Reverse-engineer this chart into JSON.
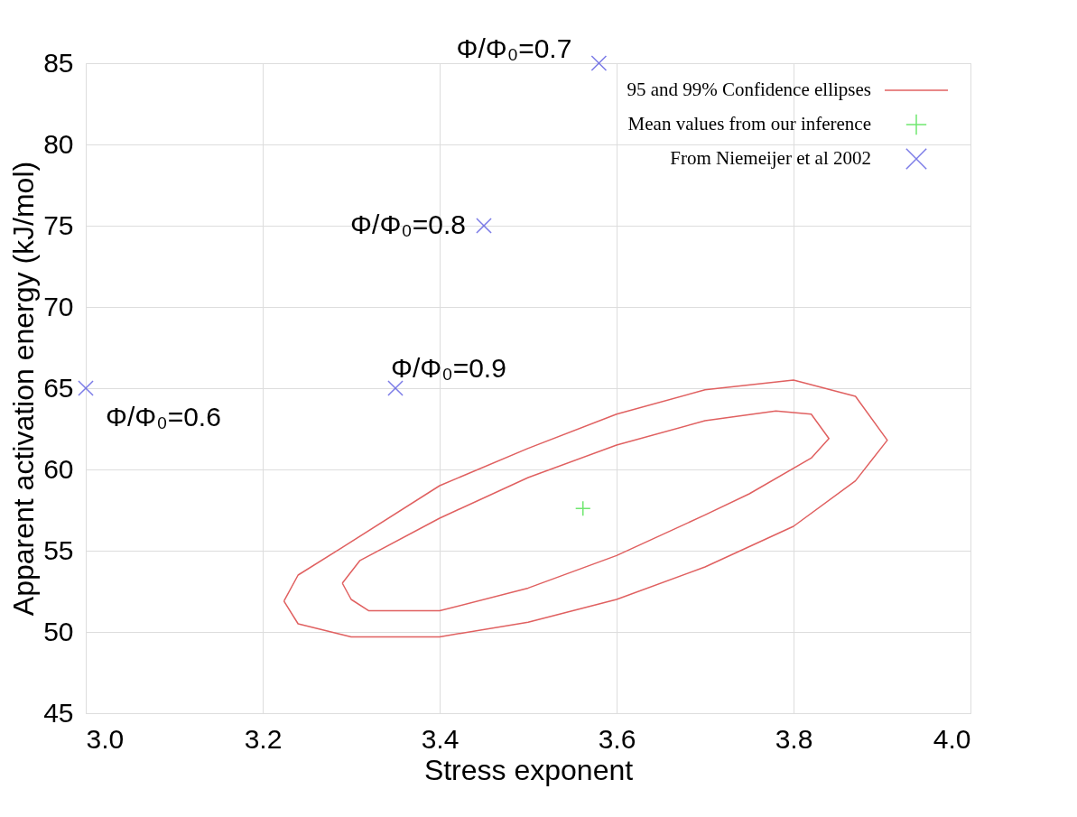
{
  "chart_data": {
    "type": "scatter",
    "xlabel": "Stress exponent",
    "ylabel": "Apparent activation energy (kJ/mol)",
    "xlim": [
      3.0,
      4.0
    ],
    "ylim": [
      45,
      85
    ],
    "xticks": [
      {
        "value": 3.0,
        "label": "3.0"
      },
      {
        "value": 3.2,
        "label": "3.2"
      },
      {
        "value": 3.4,
        "label": "3.4"
      },
      {
        "value": 3.6,
        "label": "3.6"
      },
      {
        "value": 3.8,
        "label": "3.8"
      },
      {
        "value": 4.0,
        "label": "4.0"
      }
    ],
    "yticks": [
      45,
      50,
      55,
      60,
      65,
      70,
      75,
      80,
      85
    ],
    "grid": true,
    "legend": "top right",
    "series": [
      {
        "name": "95 and 99% Confidence ellipses",
        "type": "line",
        "color": "#e06060"
      },
      {
        "name": "Mean values from our inference",
        "color": "#33dd33",
        "marker": "cross",
        "x": [
          3.562
        ],
        "values": [
          57.6
        ]
      },
      {
        "name": "From Niemeijer et al 2002",
        "color": "#4444dd",
        "marker": "x",
        "x": [
          3.0,
          3.58,
          3.45,
          3.35
        ],
        "values": [
          65,
          85,
          75,
          65
        ]
      }
    ],
    "annotations": [
      {
        "text": "Φ/Φ₀=0.7",
        "x": 3.58,
        "y": 85
      },
      {
        "text": "Φ/Φ₀=0.8",
        "x": 3.45,
        "y": 75
      },
      {
        "text": "Φ/Φ₀=0.9",
        "x": 3.35,
        "y": 65
      },
      {
        "text": "Φ/Φ₀=0.6",
        "x": 3.0,
        "y": 65
      }
    ]
  }
}
